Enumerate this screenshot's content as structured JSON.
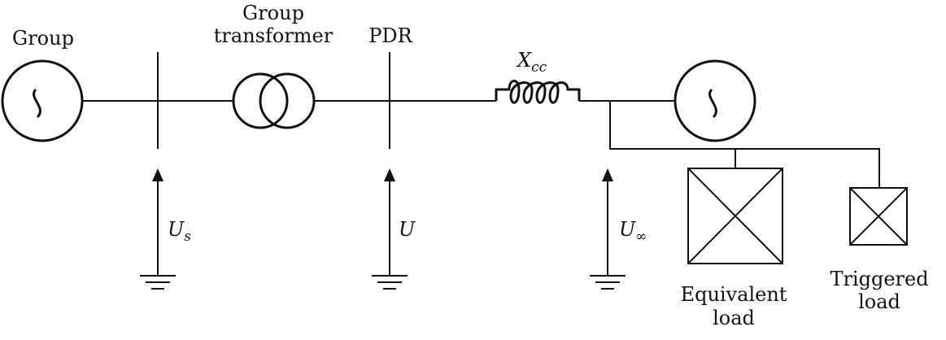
{
  "labels": {
    "group": "Group",
    "transformer_line1": "Group",
    "transformer_line2": "transformer",
    "pdr": "PDR",
    "equivalent_line1": "Equivalent",
    "equivalent_line2": "load",
    "triggered_line1": "Triggered",
    "triggered_line2": "load"
  },
  "math": {
    "xcc_base": "X",
    "xcc_sub": "cc",
    "us_base": "U",
    "us_sub": "s",
    "u": "U",
    "uinf_base": "U",
    "uinf_sub": "∞"
  }
}
